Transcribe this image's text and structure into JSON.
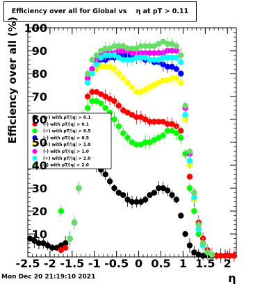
{
  "title": "Efficiency over all for Global vs    η at pT > 0.11",
  "footer": "Mon Dec 20 21:19:10 2021",
  "chart_data": {
    "type": "scatter",
    "title": "Efficiency over all for Global vs    η at pT > 0.11",
    "xlabel": "η",
    "ylabel": "Efficiency over all (%)",
    "xlim": [
      -2.5,
      2.2
    ],
    "ylim": [
      0,
      100
    ],
    "xticks": [
      "-2.5",
      "-2",
      "-1.5",
      "-1",
      "-0.5",
      "0",
      "0.5",
      "1",
      "1.5",
      "2"
    ],
    "yticks": [
      "10",
      "20",
      "30",
      "40",
      "50",
      "60",
      "70",
      "80",
      "90",
      "100"
    ],
    "grid": true,
    "legend_position": "left-middle",
    "series": [
      {
        "name": "(+) with pT/|q| > 0.1",
        "color": "#000000",
        "x": [
          -2.45,
          -2.35,
          -2.25,
          -2.15,
          -2.05,
          -1.95,
          -1.85,
          -1.75,
          -1.65,
          -1.55,
          -1.45,
          -1.35,
          -1.25,
          -1.15,
          -1.05,
          -0.95,
          -0.85,
          -0.75,
          -0.65,
          -0.55,
          -0.45,
          -0.35,
          -0.25,
          -0.15,
          -0.05,
          0.05,
          0.15,
          0.25,
          0.35,
          0.45,
          0.55,
          0.65,
          0.75,
          0.85,
          0.95,
          1.05,
          1.15,
          1.25,
          1.35,
          1.45,
          1.55,
          1.65,
          1.75,
          1.85,
          1.95,
          2.05,
          2.15
        ],
        "y": [
          8,
          7,
          6,
          6,
          5,
          4,
          4,
          5,
          6,
          8,
          15,
          30,
          43,
          47,
          45,
          40,
          38,
          36,
          33,
          30,
          28,
          27,
          25,
          24,
          24,
          24,
          25,
          27,
          28,
          30,
          30,
          29,
          27,
          25,
          18,
          10,
          5,
          2,
          1,
          0.5,
          0.5,
          0.5,
          0.5,
          0.5,
          0.5,
          0.5,
          0.5
        ]
      },
      {
        "name": "(-) with pT/|q| > 0.1",
        "color": "#ff0000",
        "x": [
          -1.75,
          -1.65,
          -1.55,
          -1.45,
          -1.35,
          -1.25,
          -1.15,
          -1.05,
          -0.95,
          -0.85,
          -0.75,
          -0.65,
          -0.55,
          -0.45,
          -0.35,
          -0.25,
          -0.15,
          -0.05,
          0.05,
          0.15,
          0.25,
          0.35,
          0.45,
          0.55,
          0.65,
          0.75,
          0.85,
          0.95,
          1.05,
          1.15,
          1.25,
          1.35,
          1.45,
          1.55,
          1.65,
          1.75,
          1.85,
          1.95,
          2.05,
          2.15
        ],
        "y": [
          3,
          4,
          8,
          15,
          30,
          55,
          70,
          72,
          72,
          71,
          70,
          69,
          68,
          66,
          64,
          63,
          62,
          61,
          61,
          60,
          59,
          59,
          59,
          59,
          58,
          58,
          57,
          55,
          45,
          35,
          25,
          15,
          8,
          3,
          1,
          0.5,
          0.5,
          0.5,
          0.5,
          0.5
        ]
      },
      {
        "name": "(+) with pT/|q| > 0.5",
        "color": "#00ff00",
        "x": [
          -1.75,
          -1.65,
          -1.55,
          -1.45,
          -1.35,
          -1.25,
          -1.15,
          -1.05,
          -0.95,
          -0.85,
          -0.75,
          -0.65,
          -0.55,
          -0.45,
          -0.35,
          -0.25,
          -0.15,
          -0.05,
          0.05,
          0.15,
          0.25,
          0.35,
          0.45,
          0.55,
          0.65,
          0.75,
          0.85,
          0.95,
          1.05,
          1.15,
          1.25,
          1.35,
          1.45,
          1.55,
          1.65
        ],
        "y": [
          20,
          45,
          8,
          15,
          30,
          55,
          65,
          68,
          68,
          67,
          65,
          63,
          60,
          57,
          54,
          52,
          50,
          49,
          49,
          50,
          50,
          51,
          52,
          53,
          55,
          55,
          54,
          52,
          45,
          30,
          20,
          10,
          5,
          2,
          1
        ]
      },
      {
        "name": "(-) with pT/|q| > 0.5",
        "color": "#0000ff",
        "x": [
          -1.55,
          -1.45,
          -1.35,
          -1.25,
          -1.15,
          -1.05,
          -0.95,
          -0.85,
          -0.75,
          -0.65,
          -0.55,
          -0.45,
          -0.35,
          -0.25,
          -0.15,
          -0.05,
          0.05,
          0.15,
          0.25,
          0.35,
          0.45,
          0.55,
          0.65,
          0.75,
          0.85,
          0.95,
          1.05,
          1.15,
          1.25,
          1.35,
          1.45,
          1.55
        ],
        "y": [
          8,
          15,
          30,
          60,
          78,
          82,
          85,
          86,
          86,
          87,
          87,
          88,
          88,
          88,
          88,
          87,
          87,
          86,
          86,
          85,
          85,
          84,
          83,
          83,
          82,
          80,
          60,
          40,
          25,
          12,
          5,
          2
        ]
      },
      {
        "name": "(+) with pT/|q| > 1.0",
        "color": "#ffff00",
        "x": [
          -1.55,
          -1.45,
          -1.35,
          -1.25,
          -1.15,
          -1.05,
          -0.95,
          -0.85,
          -0.75,
          -0.65,
          -0.55,
          -0.45,
          -0.35,
          -0.25,
          -0.15,
          -0.05,
          0.05,
          0.15,
          0.25,
          0.35,
          0.45,
          0.55,
          0.65,
          0.75,
          0.85,
          0.95,
          1.05,
          1.15,
          1.25,
          1.35,
          1.45,
          1.55
        ],
        "y": [
          8,
          15,
          30,
          60,
          76,
          80,
          82,
          83,
          83,
          83,
          82,
          80,
          78,
          76,
          74,
          72,
          72,
          73,
          74,
          75,
          76,
          77,
          77,
          78,
          78,
          76,
          60,
          40,
          25,
          12,
          5,
          2
        ]
      },
      {
        "name": "(-) with pT/|q| > 1.0",
        "color": "#ff00ff",
        "x": [
          -1.55,
          -1.45,
          -1.35,
          -1.25,
          -1.15,
          -1.05,
          -0.95,
          -0.85,
          -0.75,
          -0.65,
          -0.55,
          -0.45,
          -0.35,
          -0.25,
          -0.15,
          -0.05,
          0.05,
          0.15,
          0.25,
          0.35,
          0.45,
          0.55,
          0.65,
          0.75,
          0.85,
          0.95,
          1.05,
          1.15,
          1.25,
          1.35,
          1.45,
          1.55,
          1.65
        ],
        "y": [
          8,
          15,
          30,
          60,
          78,
          82,
          86,
          88,
          89,
          89,
          89,
          90,
          90,
          90,
          89,
          89,
          89,
          89,
          89,
          89,
          89,
          89,
          90,
          90,
          90,
          88,
          65,
          45,
          28,
          14,
          6,
          2,
          1
        ]
      },
      {
        "name": "(+) with pT/|q| > 2.0",
        "color": "#00ffff",
        "x": [
          -1.55,
          -1.45,
          -1.35,
          -1.25,
          -1.15,
          -1.05,
          -0.95,
          -0.85,
          -0.75,
          -0.65,
          -0.55,
          -0.45,
          -0.35,
          -0.25,
          -0.15,
          -0.05,
          0.05,
          0.15,
          0.25,
          0.35,
          0.45,
          0.55,
          0.65,
          0.75,
          0.85,
          0.95,
          1.05,
          1.15,
          1.25,
          1.35,
          1.45,
          1.55
        ],
        "y": [
          8,
          15,
          30,
          60,
          76,
          80,
          84,
          87,
          88,
          88,
          88,
          87,
          86,
          86,
          86,
          87,
          87,
          87,
          86,
          86,
          86,
          87,
          87,
          87,
          87,
          85,
          62,
          42,
          26,
          12,
          5,
          2
        ]
      },
      {
        "name": "(-) with pT/|q| > 2.0",
        "color": "#66dd66",
        "x": [
          -1.55,
          -1.45,
          -1.35,
          -1.25,
          -1.15,
          -1.05,
          -0.95,
          -0.85,
          -0.75,
          -0.65,
          -0.55,
          -0.45,
          -0.35,
          -0.25,
          -0.15,
          -0.05,
          0.05,
          0.15,
          0.25,
          0.35,
          0.45,
          0.55,
          0.65,
          0.75,
          0.85,
          0.95,
          1.05,
          1.15,
          1.25,
          1.35,
          1.45,
          1.55,
          1.65
        ],
        "y": [
          8,
          15,
          30,
          62,
          80,
          86,
          88,
          90,
          91,
          91,
          92,
          92,
          92,
          91,
          91,
          91,
          92,
          92,
          92,
          92,
          93,
          94,
          93,
          93,
          92,
          88,
          66,
          46,
          28,
          14,
          6,
          2,
          1
        ]
      }
    ]
  }
}
